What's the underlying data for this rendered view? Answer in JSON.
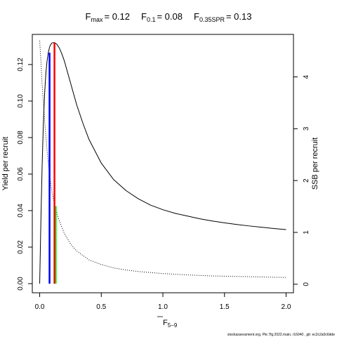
{
  "title_parts": [
    {
      "main": "F",
      "sub": "max",
      "value": "= 0.12"
    },
    {
      "main": "F",
      "sub": "0.1",
      "value": "= 0.08"
    },
    {
      "main": "F",
      "sub": "0.35SPR",
      "value": "= 0.13"
    }
  ],
  "footer": "stockassessment.org, Ple.7fg.2022.main, r16040 , git: ec2c2a0c6dde",
  "chart_data": {
    "type": "line",
    "xlabel_main": "F",
    "xlabel_sub": "5−9",
    "ylabel_left": "Yield per recruit",
    "ylabel_right": "SSB per recruit",
    "xlim": [
      -0.06,
      2.06
    ],
    "ylim_left": [
      -0.005,
      0.1365
    ],
    "ylim_right": [
      -0.165,
      4.82
    ],
    "x_ticks": [
      {
        "value": 0.0,
        "label": "0.0"
      },
      {
        "value": 0.5,
        "label": "0.5"
      },
      {
        "value": 1.0,
        "label": "1.0"
      },
      {
        "value": 1.5,
        "label": "1.5"
      },
      {
        "value": 2.0,
        "label": "2.0"
      }
    ],
    "y_ticks_left": [
      {
        "value": 0.0,
        "label": "0.00"
      },
      {
        "value": 0.02,
        "label": "0.02"
      },
      {
        "value": 0.04,
        "label": "0.04"
      },
      {
        "value": 0.06,
        "label": "0.06"
      },
      {
        "value": 0.08,
        "label": "0.08"
      },
      {
        "value": 0.1,
        "label": "0.10"
      },
      {
        "value": 0.12,
        "label": "0.12"
      }
    ],
    "y_ticks_right": [
      {
        "value": 0,
        "label": "0"
      },
      {
        "value": 1,
        "label": "1"
      },
      {
        "value": 2,
        "label": "2"
      },
      {
        "value": 3,
        "label": "3"
      },
      {
        "value": 4,
        "label": "4"
      }
    ],
    "series": [
      {
        "axis": "left",
        "style": "solid",
        "color": "#000000",
        "x": [
          0.0,
          0.01,
          0.02,
          0.03,
          0.04,
          0.05,
          0.06,
          0.07,
          0.08,
          0.09,
          0.1,
          0.11,
          0.12,
          0.13,
          0.14,
          0.16,
          0.18,
          0.2,
          0.25,
          0.3,
          0.35,
          0.4,
          0.5,
          0.6,
          0.7,
          0.8,
          0.9,
          1.0,
          1.1,
          1.2,
          1.3,
          1.4,
          1.5,
          1.6,
          1.7,
          1.8,
          1.9,
          2.0
        ],
        "y": [
          0.0,
          0.035,
          0.065,
          0.088,
          0.104,
          0.115,
          0.122,
          0.1265,
          0.1295,
          0.131,
          0.1318,
          0.132,
          0.132,
          0.1316,
          0.131,
          0.129,
          0.1258,
          0.122,
          0.11,
          0.098,
          0.088,
          0.079,
          0.066,
          0.057,
          0.051,
          0.0465,
          0.043,
          0.0405,
          0.0385,
          0.037,
          0.0355,
          0.0343,
          0.0333,
          0.0324,
          0.0316,
          0.0309,
          0.0302,
          0.0296
        ]
      },
      {
        "axis": "right",
        "style": "dotted",
        "color": "#000000",
        "x": [
          0.0,
          0.01,
          0.02,
          0.04,
          0.06,
          0.08,
          0.1,
          0.12,
          0.15,
          0.2,
          0.25,
          0.3,
          0.4,
          0.5,
          0.6,
          0.7,
          0.8,
          1.0,
          1.2,
          1.4,
          1.6,
          1.8,
          2.0
        ],
        "y": [
          4.7,
          4.3,
          3.85,
          3.15,
          2.58,
          2.1,
          1.78,
          1.55,
          1.28,
          0.98,
          0.78,
          0.64,
          0.47,
          0.38,
          0.315,
          0.275,
          0.245,
          0.205,
          0.18,
          0.16,
          0.15,
          0.14,
          0.13
        ]
      }
    ],
    "reference_lines": [
      {
        "label": "F0.1",
        "color": "#0000ff",
        "x": 0.08,
        "y_left": 0.1265
      },
      {
        "label": "F0.35SPR",
        "color": "#00ff00",
        "x": 0.13,
        "y_left": 0.0425
      },
      {
        "label": "Fmax",
        "color": "#ff0000",
        "x": 0.12,
        "y_left": 0.132
      }
    ]
  }
}
